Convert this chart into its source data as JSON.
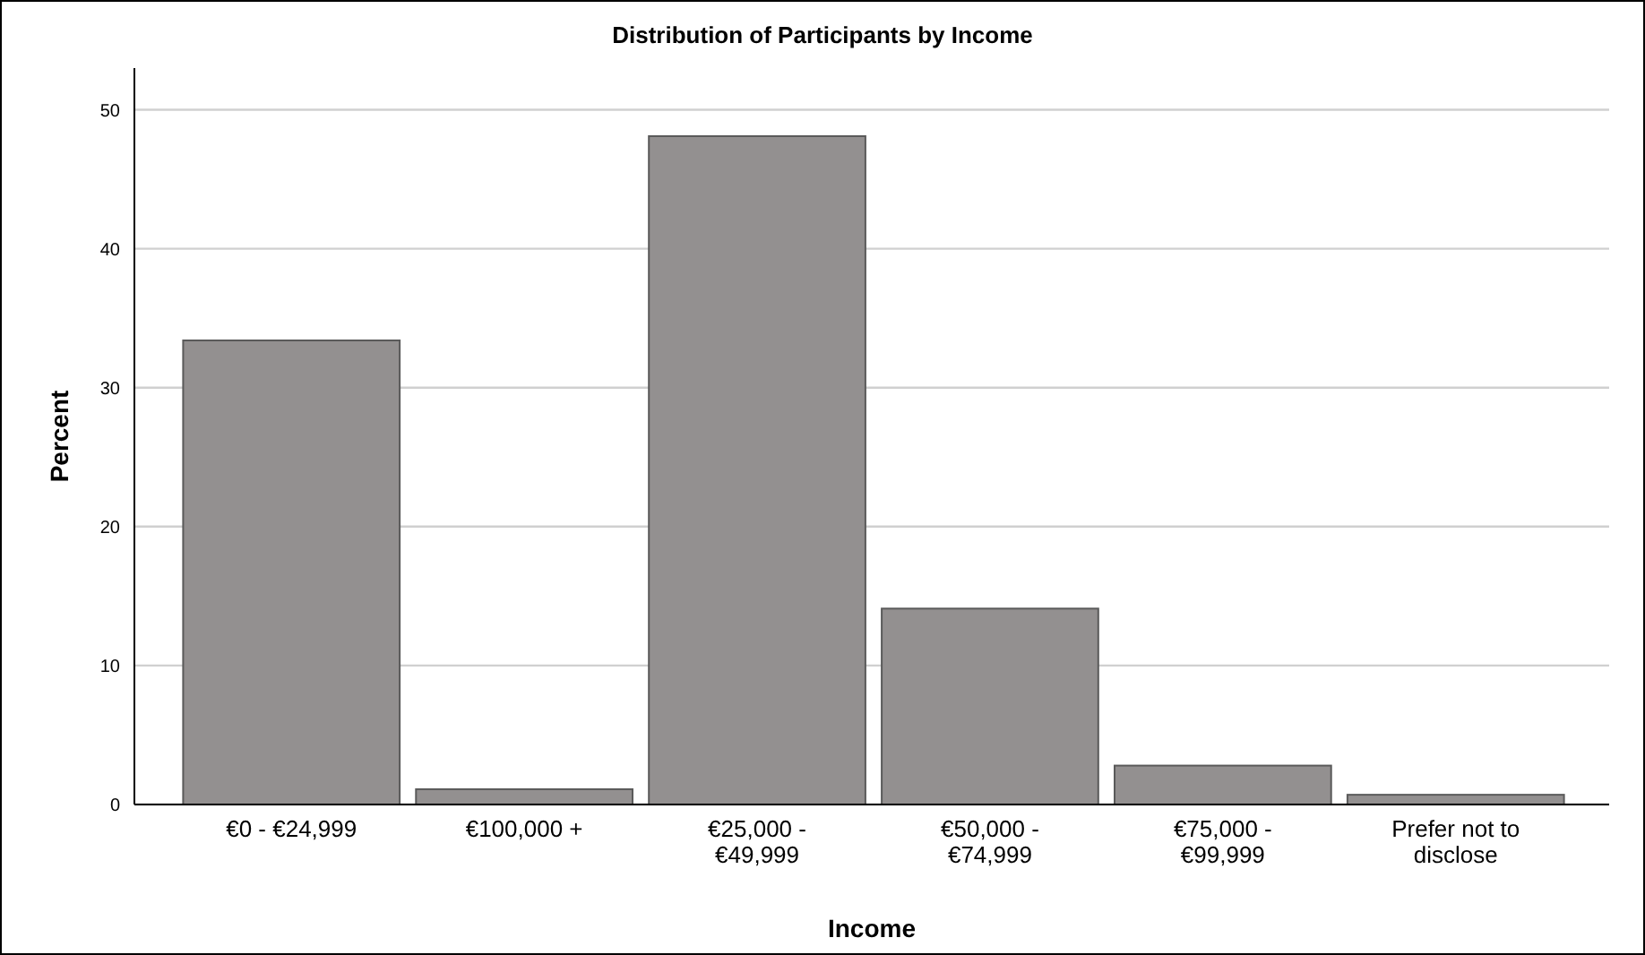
{
  "chart_data": {
    "type": "bar",
    "title": "Distribution of Participants by Income",
    "xlabel": "Income",
    "ylabel": "Percent",
    "categories": [
      "€0 - €24,999",
      "€100,000 +",
      "€25,000 - €49,999",
      "€50,000 - €74,999",
      "€75,000 - €99,999",
      "Prefer not to disclose"
    ],
    "values": [
      33.4,
      1.1,
      48.1,
      14.1,
      2.8,
      0.7
    ],
    "color": "#939090",
    "ylim": [
      0,
      53
    ],
    "yticks": [
      0,
      10,
      20,
      30,
      40,
      50
    ],
    "grid": "y"
  }
}
